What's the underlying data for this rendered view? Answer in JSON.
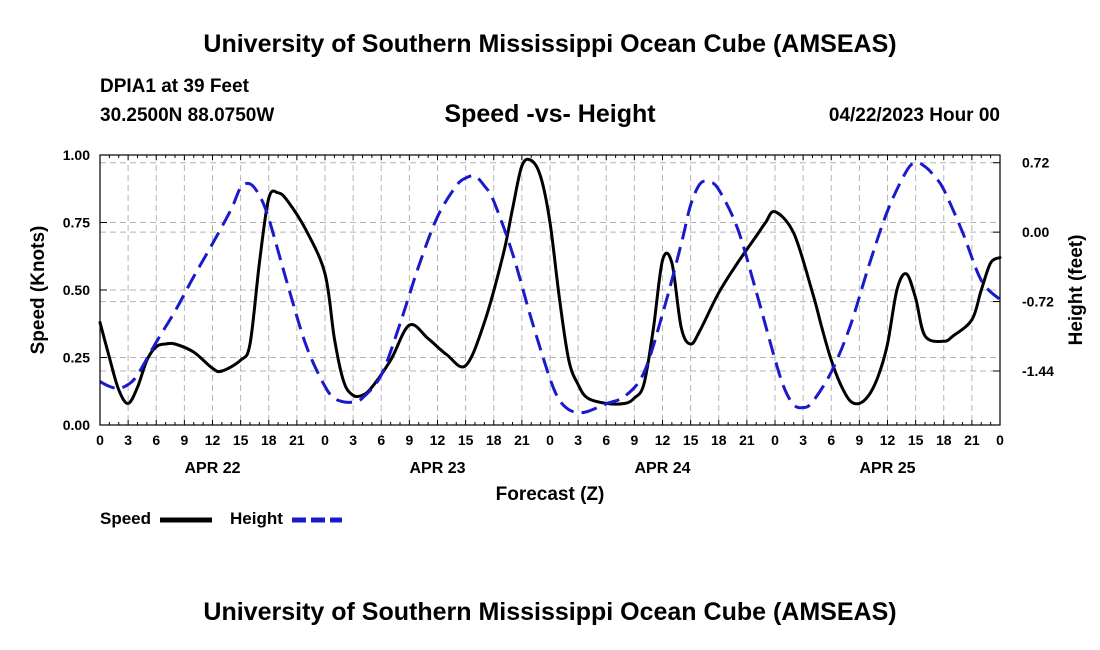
{
  "header": {
    "title": "University of Southern Mississippi Ocean Cube (AMSEAS)",
    "station": "DPIA1 at 39 Feet",
    "coords": "30.2500N  88.0750W",
    "date": "04/22/2023 Hour 00"
  },
  "footer": {
    "title": "University of Southern Mississippi Ocean Cube (AMSEAS)"
  },
  "legend": {
    "speed_label": "Speed",
    "height_label": "Height"
  },
  "colors": {
    "speed": "#000000",
    "height": "#1a1acc",
    "grid": "#b4b4b4"
  },
  "chart_data": {
    "type": "line",
    "title": "Speed -vs- Height",
    "xlabel": "Forecast (Z)",
    "ylabel": "Speed (Knots)",
    "y2label": "Height (feet)",
    "xlim": [
      0,
      96
    ],
    "ylim": [
      0,
      1
    ],
    "y2lim": [
      -2.0,
      0.8
    ],
    "x_ticks": [
      0,
      3,
      6,
      9,
      12,
      15,
      18,
      21,
      24,
      27,
      30,
      33,
      36,
      39,
      42,
      45,
      48,
      51,
      54,
      57,
      60,
      63,
      66,
      69,
      72,
      75,
      78,
      81,
      84,
      87,
      90,
      93,
      96
    ],
    "x_tick_labels": [
      "0",
      "3",
      "6",
      "9",
      "12",
      "15",
      "18",
      "21",
      "0",
      "3",
      "6",
      "9",
      "12",
      "15",
      "18",
      "21",
      "0",
      "3",
      "6",
      "9",
      "12",
      "15",
      "18",
      "21",
      "0",
      "3",
      "6",
      "9",
      "12",
      "15",
      "18",
      "21",
      "0"
    ],
    "day_labels": [
      {
        "x": 12,
        "label": "APR 22"
      },
      {
        "x": 36,
        "label": "APR 23"
      },
      {
        "x": 60,
        "label": "APR 24"
      },
      {
        "x": 84,
        "label": "APR 25"
      }
    ],
    "y_ticks": [
      0.0,
      0.25,
      0.5,
      0.75,
      1.0
    ],
    "y_tick_labels": [
      "0.00",
      "0.25",
      "0.50",
      "0.75",
      "1.00"
    ],
    "y2_ticks": [
      0.72,
      0.0,
      -0.72,
      -1.44
    ],
    "y2_tick_labels": [
      "0.72",
      "0.00",
      "-0.72",
      "-1.44"
    ],
    "series": [
      {
        "name": "Speed",
        "axis": "left",
        "style": "solid",
        "x": [
          0,
          1,
          2,
          3,
          4,
          5,
          6,
          7,
          8,
          10,
          12,
          13,
          15,
          16,
          17,
          18,
          19,
          20,
          22,
          24,
          25,
          26,
          27,
          28,
          29,
          31,
          33,
          35,
          37,
          39,
          41,
          43,
          44,
          45,
          46,
          47,
          48,
          49,
          50,
          51,
          52,
          54,
          56,
          57,
          58,
          59,
          60,
          61,
          62,
          63,
          64,
          66,
          68,
          70,
          71,
          72,
          74,
          76,
          77,
          78,
          79,
          80,
          81,
          82,
          83,
          84,
          85,
          86,
          87,
          88,
          90,
          91,
          93,
          94,
          95,
          96
        ],
        "values": [
          0.38,
          0.25,
          0.13,
          0.08,
          0.14,
          0.24,
          0.29,
          0.3,
          0.3,
          0.27,
          0.21,
          0.2,
          0.24,
          0.3,
          0.6,
          0.84,
          0.86,
          0.83,
          0.72,
          0.56,
          0.32,
          0.16,
          0.11,
          0.11,
          0.14,
          0.24,
          0.37,
          0.32,
          0.26,
          0.22,
          0.38,
          0.63,
          0.8,
          0.96,
          0.98,
          0.92,
          0.75,
          0.47,
          0.24,
          0.15,
          0.1,
          0.08,
          0.08,
          0.1,
          0.15,
          0.35,
          0.61,
          0.6,
          0.36,
          0.3,
          0.35,
          0.49,
          0.6,
          0.7,
          0.75,
          0.79,
          0.71,
          0.49,
          0.36,
          0.24,
          0.15,
          0.09,
          0.08,
          0.11,
          0.18,
          0.3,
          0.5,
          0.56,
          0.47,
          0.33,
          0.31,
          0.33,
          0.39,
          0.5,
          0.6,
          0.62
        ]
      },
      {
        "name": "Height",
        "axis": "right",
        "style": "dashed",
        "x": [
          0,
          1,
          2,
          3,
          4,
          6,
          8,
          10,
          12,
          14,
          15,
          16,
          17,
          18,
          20,
          22,
          24,
          25,
          26,
          27,
          28,
          30,
          32,
          34,
          36,
          38,
          39,
          40,
          41,
          42,
          44,
          46,
          48,
          49,
          50,
          51,
          52,
          54,
          56,
          58,
          60,
          62,
          63,
          64,
          65,
          66,
          68,
          70,
          72,
          73,
          74,
          75,
          76,
          78,
          80,
          82,
          84,
          86,
          87,
          88,
          89,
          90,
          92,
          94,
          96
        ],
        "values": [
          -1.55,
          -1.6,
          -1.62,
          -1.58,
          -1.48,
          -1.14,
          -0.82,
          -0.46,
          -0.12,
          0.24,
          0.46,
          0.5,
          0.38,
          0.14,
          -0.54,
          -1.18,
          -1.6,
          -1.72,
          -1.76,
          -1.76,
          -1.72,
          -1.48,
          -0.95,
          -0.35,
          0.16,
          0.48,
          0.56,
          0.58,
          0.48,
          0.32,
          -0.22,
          -0.9,
          -1.52,
          -1.74,
          -1.84,
          -1.87,
          -1.86,
          -1.78,
          -1.7,
          -1.46,
          -0.85,
          -0.12,
          0.28,
          0.5,
          0.52,
          0.44,
          0.04,
          -0.62,
          -1.32,
          -1.62,
          -1.79,
          -1.82,
          -1.76,
          -1.45,
          -0.98,
          -0.35,
          0.22,
          0.63,
          0.72,
          0.68,
          0.58,
          0.44,
          0.0,
          -0.5,
          -0.7
        ]
      }
    ]
  }
}
